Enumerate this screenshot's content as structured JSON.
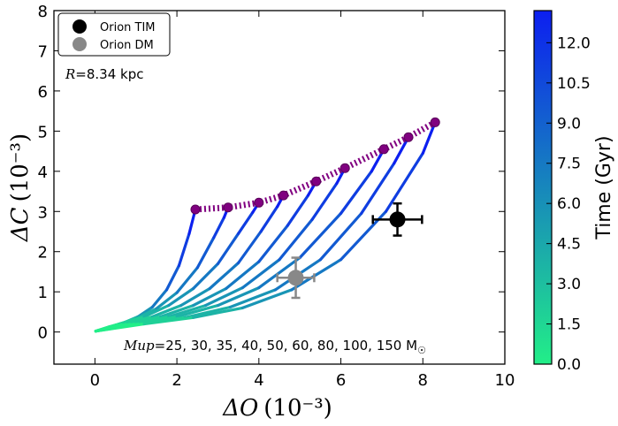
{
  "chart_data": {
    "type": "line",
    "xlabel": "ΔO (10⁻³)",
    "ylabel": "ΔC (10⁻³)",
    "xlabel_main": "ΔO",
    "xlabel_unit": "(10⁻³)",
    "ylabel_main": "ΔC",
    "ylabel_unit": "(10⁻³)",
    "xlim": [
      -1,
      10
    ],
    "ylim": [
      -0.8,
      8
    ],
    "xticks": [
      0,
      2,
      4,
      6,
      8,
      10
    ],
    "yticks": [
      0,
      1,
      2,
      3,
      4,
      5,
      6,
      7,
      8
    ],
    "xtick_labels": [
      "0",
      "2",
      "4",
      "6",
      "8",
      "10"
    ],
    "ytick_labels": [
      "0",
      "1",
      "2",
      "3",
      "4",
      "5",
      "6",
      "7",
      "8"
    ],
    "colorbar": {
      "label": "Time (Gyr)",
      "range": [
        0,
        13.2
      ],
      "ticks": [
        0,
        1.5,
        3.0,
        4.5,
        6.0,
        7.5,
        9.0,
        10.5,
        12.0
      ],
      "tick_labels": [
        "0.0",
        "1.5",
        "3.0",
        "4.5",
        "6.0",
        "7.5",
        "9.0",
        "10.5",
        "12.0"
      ],
      "color_low": "#22ee88",
      "color_high": "#0c1ff0"
    },
    "annotation_R": {
      "var": "R",
      "text": "=8.34 kpc"
    },
    "annotation_mup": {
      "var": "Mup",
      "text": "=25, 30, 35, 40, 50, 60, 80, 100, 150 M",
      "sun": "☉"
    },
    "legend": [
      {
        "name": "Orion TIM",
        "color": "#000000"
      },
      {
        "name": "Orion DM",
        "color": "#888888"
      }
    ],
    "points": [
      {
        "name": "Orion TIM",
        "x": 7.38,
        "y": 2.8,
        "xerr": 0.6,
        "yerr": 0.4,
        "color": "#000000"
      },
      {
        "name": "Orion DM",
        "x": 4.9,
        "y": 1.35,
        "xerr": 0.45,
        "yerr": 0.5,
        "color": "#888888"
      }
    ],
    "series": [
      {
        "name": "Mup=25",
        "endpoint": [
          2.45,
          3.05
        ],
        "curve": [
          [
            0.02,
            0.02
          ],
          [
            0.35,
            0.13
          ],
          [
            0.7,
            0.23
          ],
          [
            1.05,
            0.38
          ],
          [
            1.4,
            0.62
          ],
          [
            1.75,
            1.05
          ],
          [
            2.05,
            1.65
          ],
          [
            2.3,
            2.45
          ],
          [
            2.45,
            3.05
          ]
        ]
      },
      {
        "name": "Mup=30",
        "endpoint": [
          3.25,
          3.1
        ],
        "curve": [
          [
            0.02,
            0.02
          ],
          [
            0.5,
            0.17
          ],
          [
            1.0,
            0.33
          ],
          [
            1.5,
            0.58
          ],
          [
            2.0,
            0.98
          ],
          [
            2.5,
            1.6
          ],
          [
            2.9,
            2.35
          ],
          [
            3.15,
            2.85
          ],
          [
            3.25,
            3.1
          ]
        ]
      },
      {
        "name": "Mup=35",
        "endpoint": [
          4.0,
          3.22
        ],
        "curve": [
          [
            0.02,
            0.02
          ],
          [
            0.6,
            0.2
          ],
          [
            1.2,
            0.38
          ],
          [
            1.8,
            0.66
          ],
          [
            2.4,
            1.08
          ],
          [
            3.0,
            1.7
          ],
          [
            3.5,
            2.45
          ],
          [
            3.85,
            2.98
          ],
          [
            4.0,
            3.22
          ]
        ]
      },
      {
        "name": "Mup=40",
        "endpoint": [
          4.6,
          3.4
        ],
        "curve": [
          [
            0.02,
            0.02
          ],
          [
            0.7,
            0.2
          ],
          [
            1.4,
            0.38
          ],
          [
            2.1,
            0.66
          ],
          [
            2.8,
            1.08
          ],
          [
            3.5,
            1.72
          ],
          [
            4.05,
            2.5
          ],
          [
            4.45,
            3.12
          ],
          [
            4.6,
            3.4
          ]
        ]
      },
      {
        "name": "Mup=50",
        "endpoint": [
          5.4,
          3.75
        ],
        "curve": [
          [
            0.02,
            0.02
          ],
          [
            0.8,
            0.2
          ],
          [
            1.6,
            0.38
          ],
          [
            2.4,
            0.66
          ],
          [
            3.2,
            1.08
          ],
          [
            4.0,
            1.75
          ],
          [
            4.7,
            2.65
          ],
          [
            5.2,
            3.4
          ],
          [
            5.4,
            3.75
          ]
        ]
      },
      {
        "name": "Mup=60",
        "endpoint": [
          6.1,
          4.08
        ],
        "curve": [
          [
            0.02,
            0.02
          ],
          [
            0.9,
            0.2
          ],
          [
            1.8,
            0.38
          ],
          [
            2.7,
            0.66
          ],
          [
            3.6,
            1.1
          ],
          [
            4.5,
            1.8
          ],
          [
            5.3,
            2.8
          ],
          [
            5.9,
            3.7
          ],
          [
            6.1,
            4.08
          ]
        ]
      },
      {
        "name": "Mup=80",
        "endpoint": [
          7.05,
          4.55
        ],
        "curve": [
          [
            0.02,
            0.02
          ],
          [
            1.0,
            0.2
          ],
          [
            2.0,
            0.38
          ],
          [
            3.0,
            0.66
          ],
          [
            4.0,
            1.1
          ],
          [
            5.0,
            1.85
          ],
          [
            6.0,
            2.95
          ],
          [
            6.75,
            4.0
          ],
          [
            7.05,
            4.55
          ]
        ]
      },
      {
        "name": "Mup=100",
        "endpoint": [
          7.65,
          4.85
        ],
        "curve": [
          [
            0.02,
            0.02
          ],
          [
            1.1,
            0.2
          ],
          [
            2.2,
            0.36
          ],
          [
            3.3,
            0.62
          ],
          [
            4.4,
            1.05
          ],
          [
            5.5,
            1.8
          ],
          [
            6.5,
            2.95
          ],
          [
            7.3,
            4.2
          ],
          [
            7.65,
            4.85
          ]
        ]
      },
      {
        "name": "Mup=150",
        "endpoint": [
          8.3,
          5.22
        ],
        "curve": [
          [
            0.02,
            0.02
          ],
          [
            1.2,
            0.2
          ],
          [
            2.4,
            0.36
          ],
          [
            3.6,
            0.6
          ],
          [
            4.8,
            1.05
          ],
          [
            6.0,
            1.8
          ],
          [
            7.1,
            3.0
          ],
          [
            8.0,
            4.45
          ],
          [
            8.3,
            5.22
          ]
        ]
      }
    ],
    "envelope": {
      "name": "Mup envelope",
      "color": "#800080",
      "points": [
        [
          2.45,
          3.05
        ],
        [
          3.25,
          3.1
        ],
        [
          4.0,
          3.22
        ],
        [
          4.6,
          3.4
        ],
        [
          5.4,
          3.75
        ],
        [
          6.1,
          4.08
        ],
        [
          7.05,
          4.55
        ],
        [
          7.65,
          4.85
        ],
        [
          8.3,
          5.22
        ]
      ]
    }
  }
}
